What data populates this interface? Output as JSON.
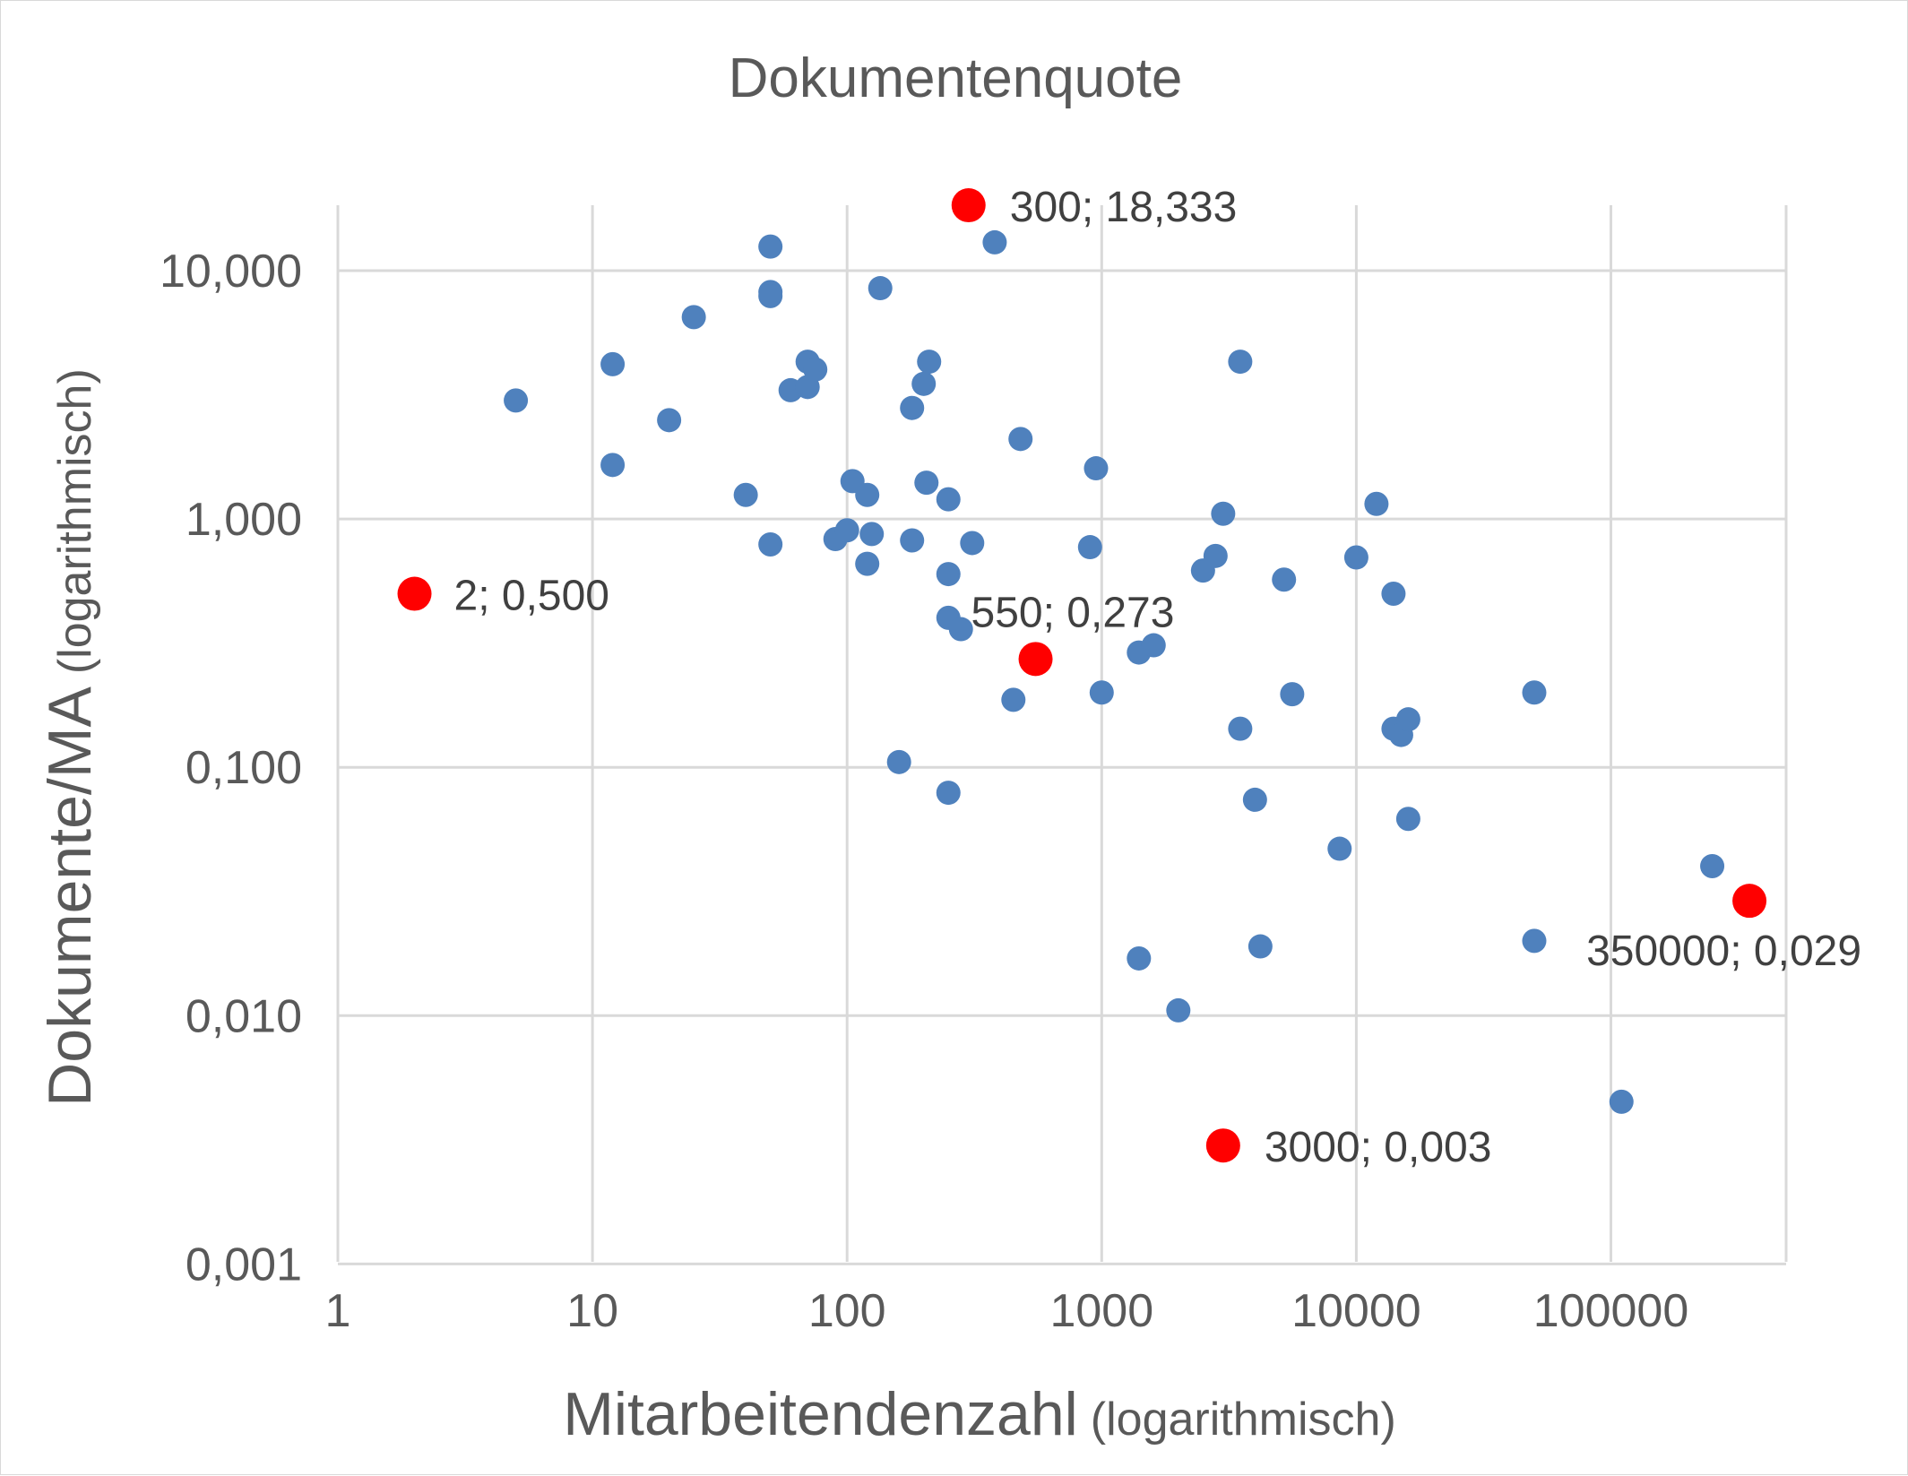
{
  "chart_data": {
    "type": "scatter",
    "title": "Dokumentenquote",
    "xlabel": "Mitarbeitendenzahl",
    "xlabel_note": "(logarithmisch)",
    "ylabel": "Dokumente/MA",
    "ylabel_note": "(logarithmisch)",
    "x_scale": "log",
    "y_scale": "log",
    "xlim": [
      1,
      350000
    ],
    "ylim": [
      0.001,
      20
    ],
    "x_ticks": [
      {
        "value": 1,
        "label": "1"
      },
      {
        "value": 10,
        "label": "10"
      },
      {
        "value": 100,
        "label": "100"
      },
      {
        "value": 1000,
        "label": "1000"
      },
      {
        "value": 10000,
        "label": "10000"
      },
      {
        "value": 100000,
        "label": "100000"
      }
    ],
    "y_ticks": [
      {
        "value": 0.001,
        "label": "0,001"
      },
      {
        "value": 0.01,
        "label": "0,010"
      },
      {
        "value": 0.1,
        "label": "0,100"
      },
      {
        "value": 1,
        "label": "1,000"
      },
      {
        "value": 10,
        "label": "10,000"
      }
    ],
    "grid": true,
    "legend": "none",
    "colors": {
      "series": "#4f81bd",
      "highlight": "#ff0000",
      "grid": "#d9d9d9",
      "text": "#595959"
    },
    "series": [
      {
        "points": [
          [
            5,
            3.0
          ],
          [
            12,
            4.2
          ],
          [
            12,
            1.65
          ],
          [
            20,
            2.5
          ],
          [
            25,
            6.5
          ],
          [
            40,
            1.25
          ],
          [
            50,
            12.5
          ],
          [
            50,
            8.2
          ],
          [
            50,
            7.9
          ],
          [
            50,
            0.79
          ],
          [
            60,
            3.3
          ],
          [
            70,
            4.3
          ],
          [
            70,
            3.4
          ],
          [
            75,
            4.0
          ],
          [
            90,
            0.83
          ],
          [
            100,
            0.9
          ],
          [
            105,
            1.42
          ],
          [
            120,
            1.25
          ],
          [
            125,
            0.87
          ],
          [
            120,
            0.66
          ],
          [
            135,
            8.5
          ],
          [
            160,
            0.105
          ],
          [
            180,
            2.8
          ],
          [
            180,
            0.82
          ],
          [
            200,
            3.5
          ],
          [
            205,
            1.4
          ],
          [
            210,
            4.3
          ],
          [
            250,
            1.2
          ],
          [
            250,
            0.6
          ],
          [
            250,
            0.4
          ],
          [
            250,
            0.079
          ],
          [
            280,
            0.36
          ],
          [
            310,
            0.8
          ],
          [
            380,
            13.0
          ],
          [
            450,
            0.187
          ],
          [
            480,
            2.1
          ],
          [
            900,
            0.77
          ],
          [
            950,
            1.6
          ],
          [
            1000,
            0.2
          ],
          [
            1400,
            0.29
          ],
          [
            1400,
            0.017
          ],
          [
            1600,
            0.31
          ],
          [
            2000,
            0.0105
          ],
          [
            2500,
            0.62
          ],
          [
            2800,
            0.71
          ],
          [
            3000,
            1.05
          ],
          [
            3500,
            4.3
          ],
          [
            3500,
            0.143
          ],
          [
            4000,
            0.074
          ],
          [
            4200,
            0.019
          ],
          [
            5200,
            0.57
          ],
          [
            5600,
            0.197
          ],
          [
            8600,
            0.047
          ],
          [
            10000,
            0.7
          ],
          [
            12000,
            1.15
          ],
          [
            14000,
            0.5
          ],
          [
            14000,
            0.143
          ],
          [
            15000,
            0.135
          ],
          [
            16000,
            0.156
          ],
          [
            16000,
            0.062
          ],
          [
            50000,
            0.2
          ],
          [
            50000,
            0.02
          ],
          [
            110000,
            0.0045
          ],
          [
            250000,
            0.04
          ]
        ]
      },
      {
        "highlighted": true,
        "points": [
          {
            "x": 2,
            "y": 0.5,
            "label": "2; 0,500"
          },
          {
            "x": 300,
            "y": 18.333,
            "label": "300; 18,333"
          },
          {
            "x": 550,
            "y": 0.273,
            "label": "550; 0,273"
          },
          {
            "x": 3000,
            "y": 0.003,
            "label": "3000; 0,003"
          },
          {
            "x": 350000,
            "y": 0.029,
            "label": "350000; 0,029"
          }
        ]
      }
    ]
  }
}
